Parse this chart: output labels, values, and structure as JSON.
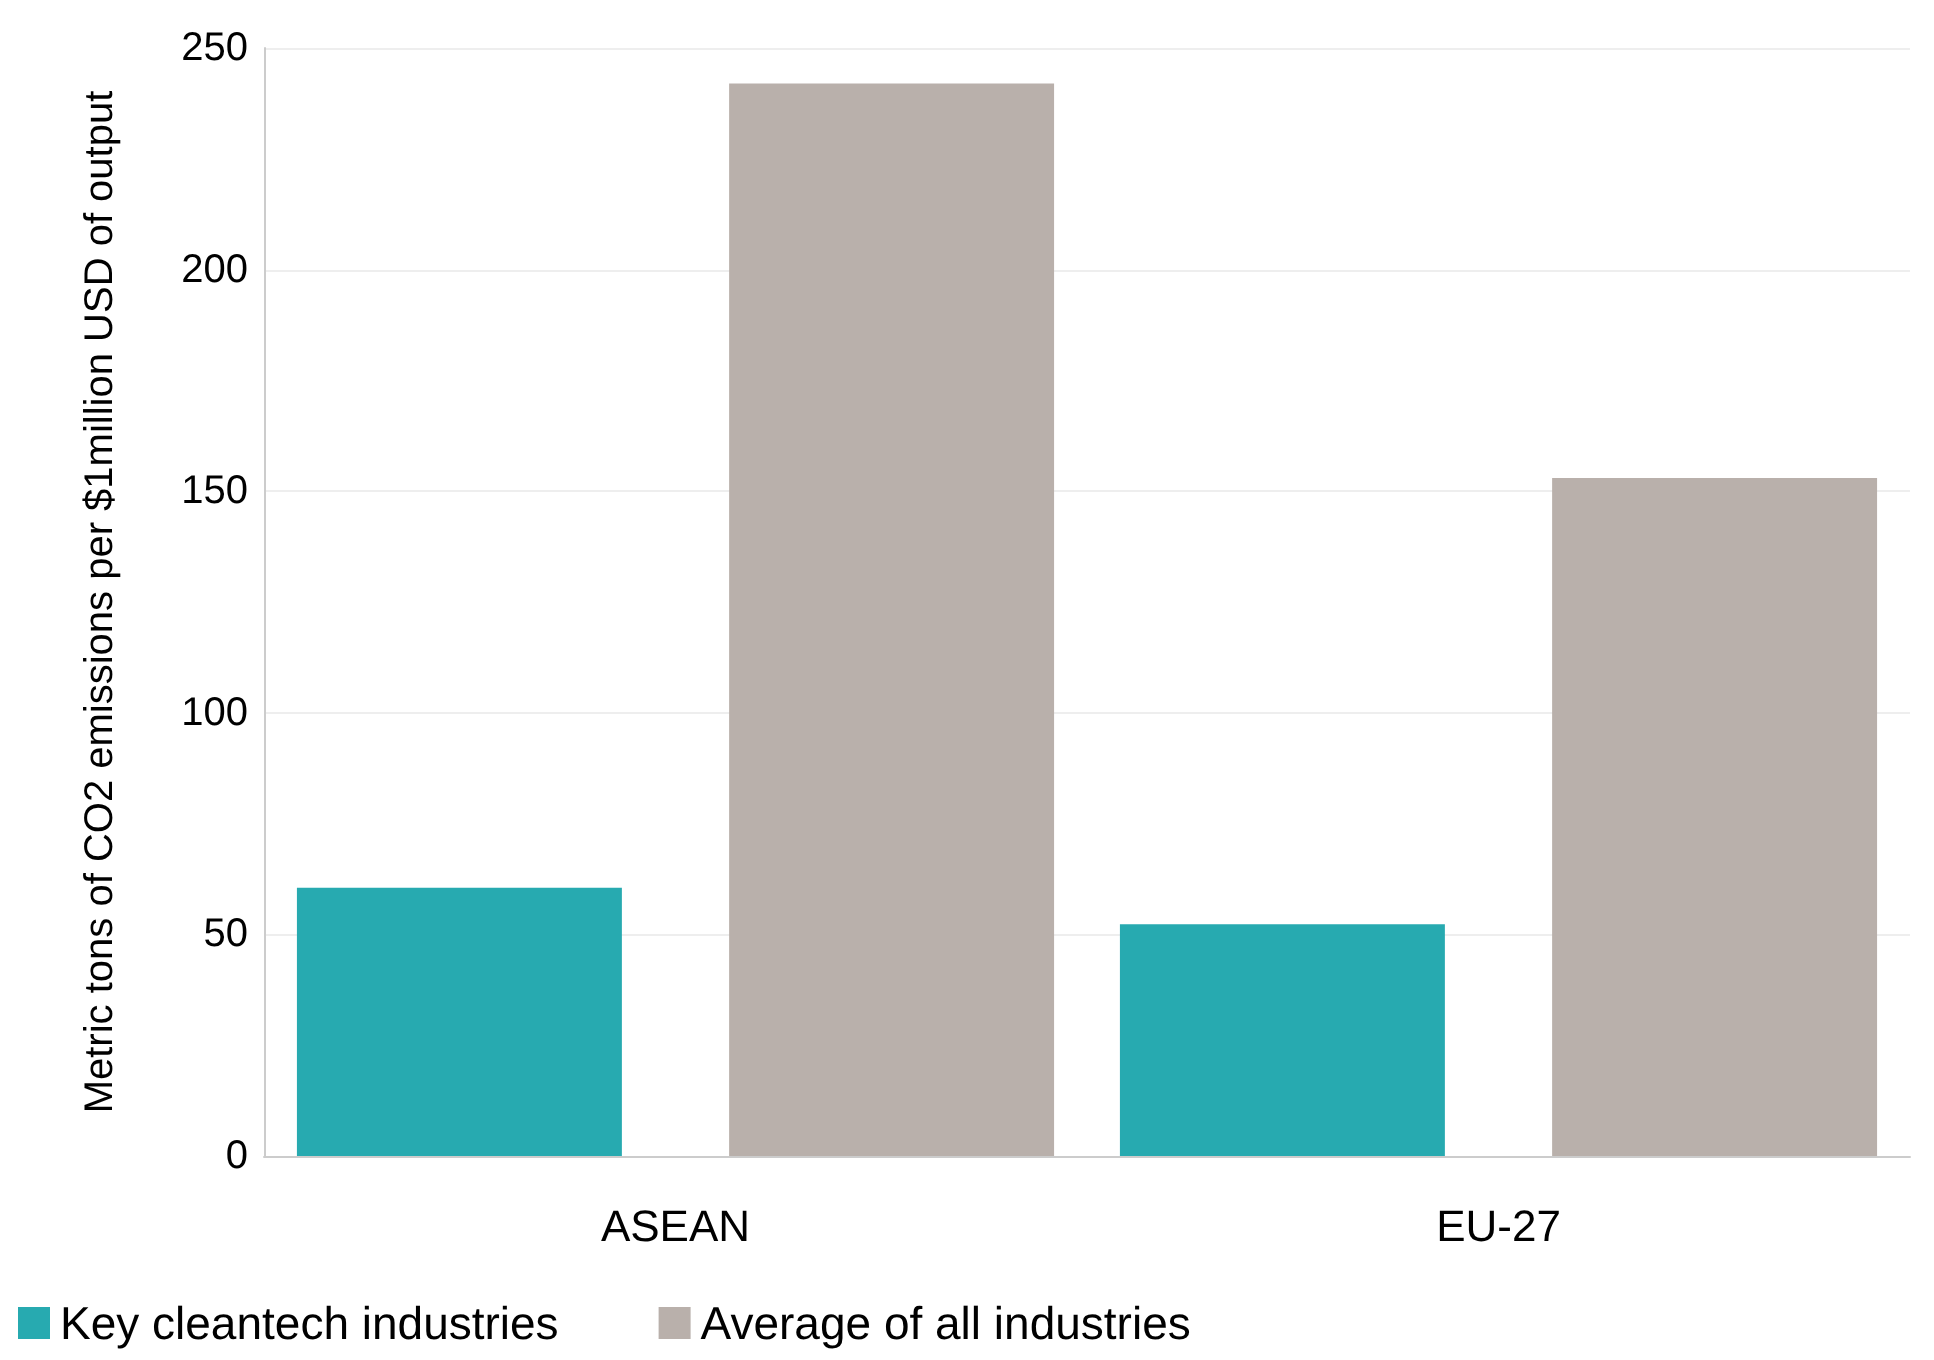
{
  "chart_data": {
    "type": "bar",
    "ylabel": "Metric tons of CO2 emissions per $1million USD of output",
    "categories": [
      "ASEAN",
      "EU-27"
    ],
    "series": [
      {
        "name": "Key cleantech industries",
        "color": "#27aab0",
        "values": [
          60.5,
          52.3
        ]
      },
      {
        "name": "Average of all industries",
        "color": "#b9b0ab",
        "values": [
          242,
          153
        ]
      }
    ],
    "ylim": [
      0,
      250
    ],
    "yticks": [
      0,
      50,
      100,
      150,
      200,
      250
    ],
    "grid": "y",
    "legend": "bottom left"
  }
}
